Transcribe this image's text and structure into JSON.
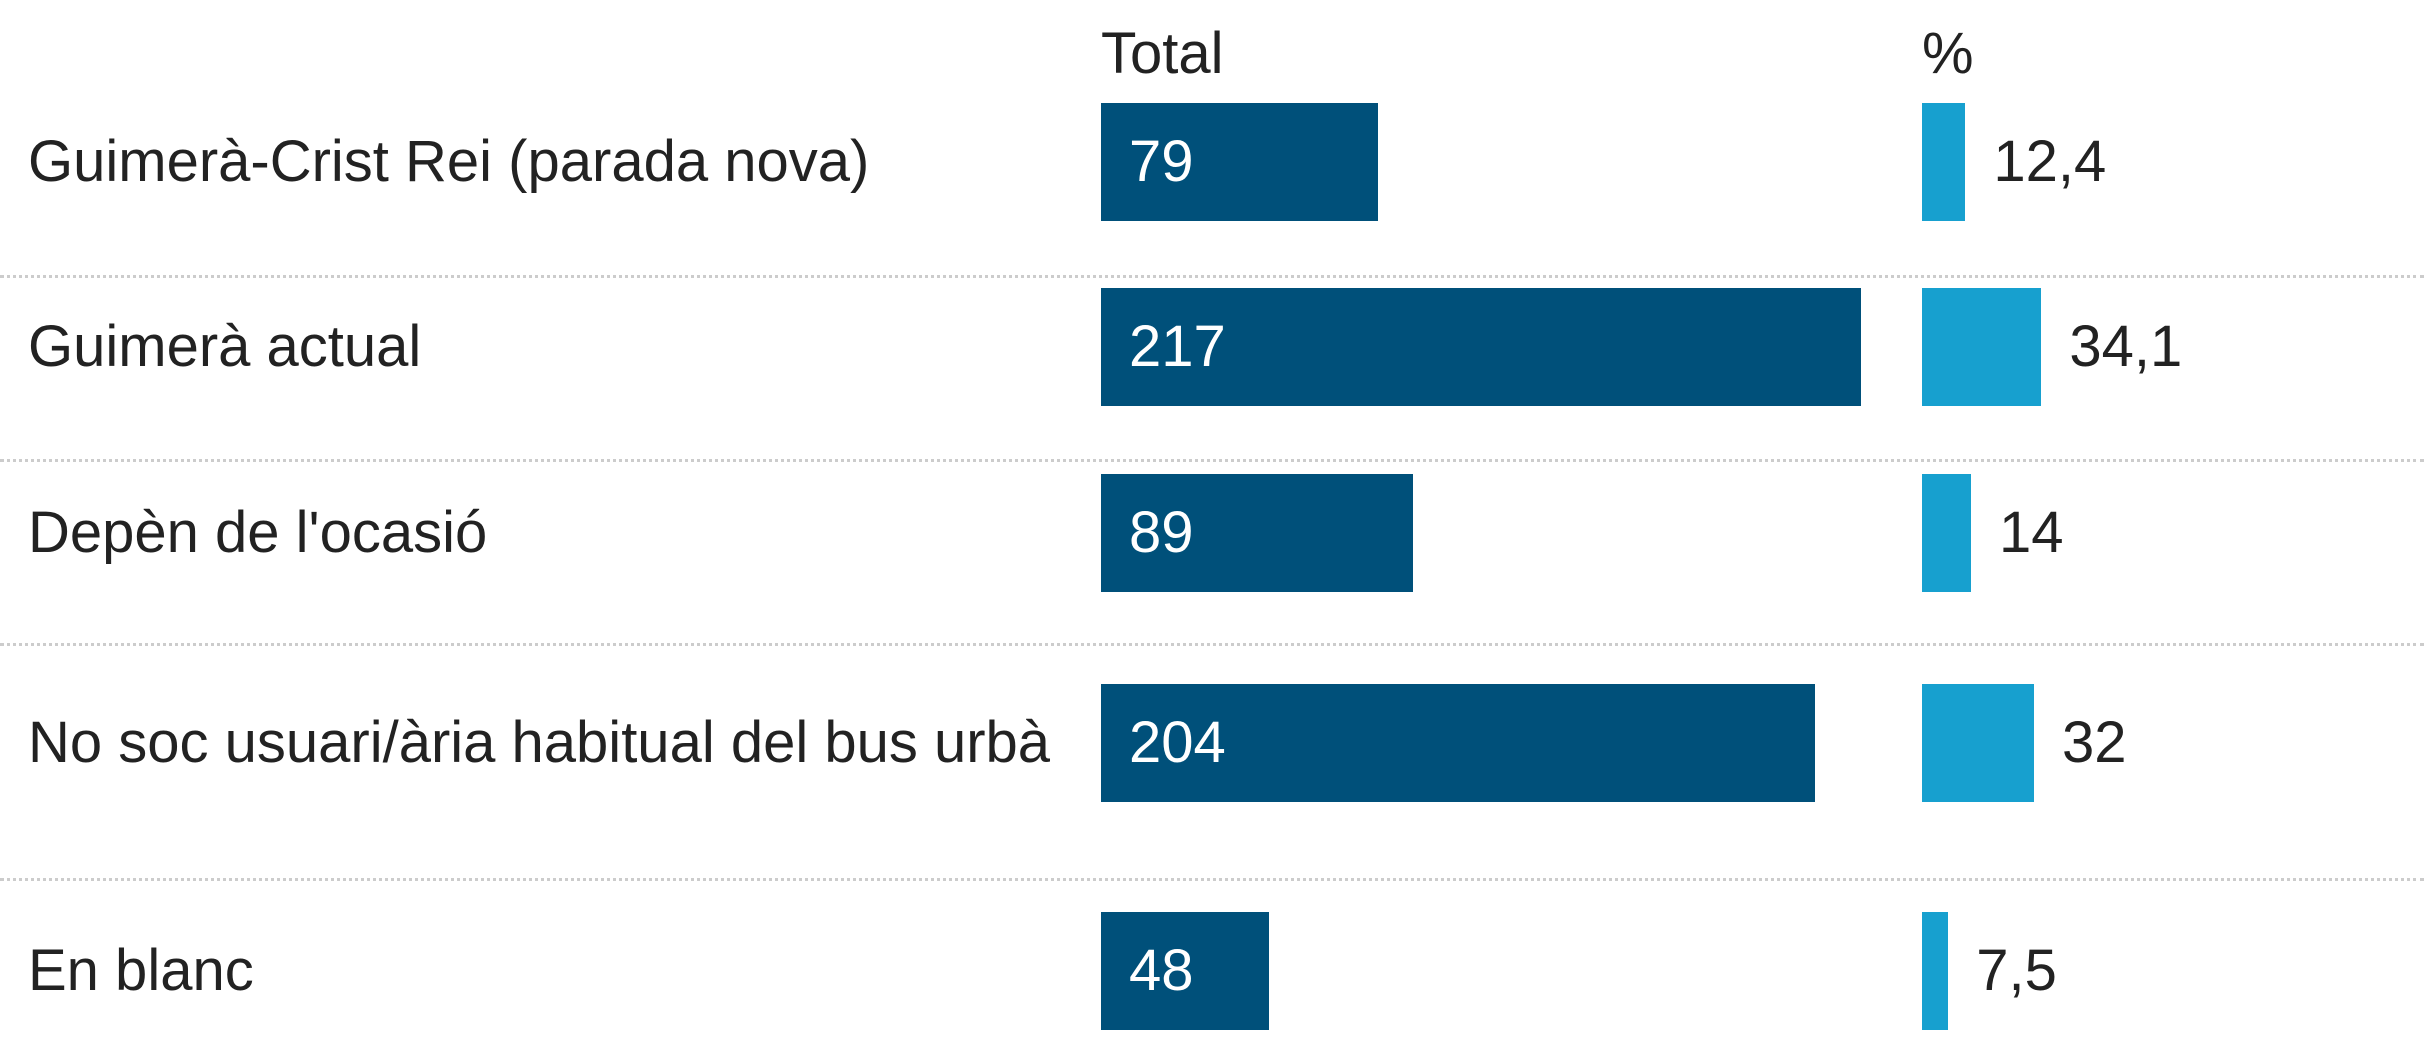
{
  "chart_data": {
    "type": "bar",
    "categories": [
      "Guimerà-Crist Rei (parada nova)",
      "Guimerà actual",
      "Depèn de l'ocasió",
      "No soc usuari/ària habitual del bus urbà",
      "En blanc"
    ],
    "series": [
      {
        "name": "Total",
        "color": "#00507a",
        "values": [
          79,
          217,
          89,
          204,
          48
        ]
      },
      {
        "name": "%",
        "color": "#17a0cf",
        "values": [
          12.4,
          34.1,
          14,
          32,
          7.5
        ],
        "value_labels": [
          "12,4",
          "34,1",
          "14",
          "32",
          "7,5"
        ]
      }
    ]
  }
}
